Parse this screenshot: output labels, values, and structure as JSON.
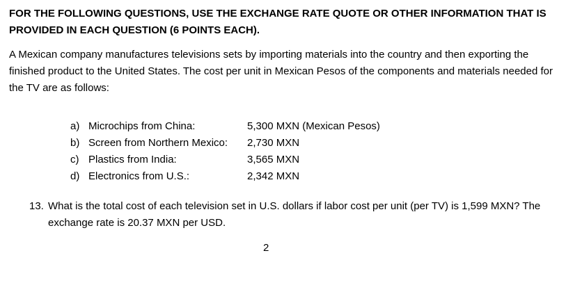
{
  "heading": "FOR THE FOLLOWING QUESTIONS, USE THE EXCHANGE RATE QUOTE OR OTHER INFORMATION THAT IS PROVIDED IN EACH QUESTION (6 POINTS EACH).",
  "intro": "A Mexican company manufactures televisions sets by importing materials into the country and then exporting the finished product to the United States. The cost per unit in Mexican Pesos of the components and materials needed for the TV are as follows:",
  "components": [
    {
      "letter": "a)",
      "name": "Microchips from China:",
      "cost": "5,300 MXN (Mexican Pesos)"
    },
    {
      "letter": "b)",
      "name": "Screen from Northern Mexico:",
      "cost": "2,730 MXN"
    },
    {
      "letter": "c)",
      "name": "Plastics from India:",
      "cost": "3,565 MXN"
    },
    {
      "letter": "d)",
      "name": "Electronics from U.S.:",
      "cost": "2,342 MXN"
    }
  ],
  "question": {
    "number": "13.",
    "text": "What is the total cost of each television set in U.S. dollars if labor cost per unit (per TV) is 1,599 MXN? The exchange rate is 20.37 MXN per USD."
  },
  "page_number": "2"
}
